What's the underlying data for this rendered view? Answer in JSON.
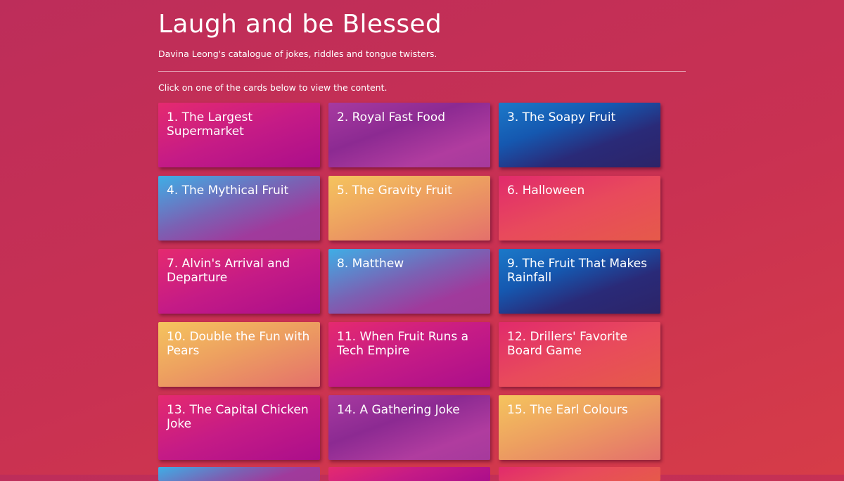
{
  "header": {
    "title": "Laugh and be Blessed",
    "subtitle": "Davina Leong's catalogue of jokes, riddles and tongue twisters.",
    "instruction": "Click on one of the cards below to view the content."
  },
  "cards": [
    {
      "label": "1. The Largest Supermarket"
    },
    {
      "label": "2. Royal Fast Food"
    },
    {
      "label": "3. The Soapy Fruit"
    },
    {
      "label": "4. The Mythical Fruit"
    },
    {
      "label": "5. The Gravity Fruit"
    },
    {
      "label": "6. Halloween"
    },
    {
      "label": "7. Alvin's Arrival and Departure"
    },
    {
      "label": "8. Matthew"
    },
    {
      "label": "9. The Fruit That Makes Rainfall"
    },
    {
      "label": "10. Double the Fun with Pears"
    },
    {
      "label": "11. When Fruit Runs a Tech Empire"
    },
    {
      "label": "12. Drillers' Favorite Board Game"
    },
    {
      "label": "13. The Capital Chicken Joke"
    },
    {
      "label": "14. A Gathering Joke"
    },
    {
      "label": "15. The Earl Colours"
    }
  ]
}
